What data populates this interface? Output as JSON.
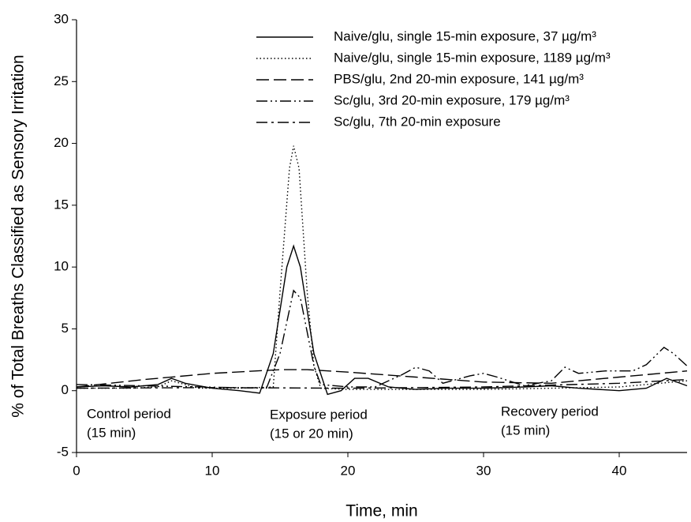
{
  "chart_data": {
    "type": "line",
    "x_label": "Time, min",
    "y_label": "% of Total Breaths Classified as Sensory Irritation",
    "xlim": [
      0,
      45
    ],
    "xticks": [
      0,
      10,
      20,
      30,
      40
    ],
    "ylim": [
      -5,
      30
    ],
    "yticks": [
      -5,
      0,
      5,
      10,
      15,
      20,
      25,
      30
    ],
    "legend": "upper right",
    "series": [
      {
        "name": "Naive/glu, single 15-min exposure, 37 µg/m³",
        "color": "#000000",
        "dash": "solid",
        "x": [
          0,
          2,
          4,
          6,
          7,
          8,
          10,
          12,
          13.5,
          14.5,
          15.5,
          16,
          16.5,
          17.5,
          18.5,
          19.5,
          20.5,
          21.5,
          23,
          25,
          27,
          30,
          33,
          35,
          37,
          40,
          42,
          43.5,
          45
        ],
        "values": [
          0.3,
          0.4,
          0.3,
          0.5,
          1.0,
          0.6,
          0.2,
          0.0,
          -0.2,
          3,
          10,
          11.7,
          10,
          3,
          -0.3,
          0,
          1.0,
          1.0,
          0.3,
          0.1,
          0.2,
          0.2,
          0.3,
          0.4,
          0.2,
          0.0,
          0.2,
          1.0,
          0.4
        ]
      },
      {
        "name": "Naive/glu, single 15-min exposure, 1189 µg/m³",
        "color": "#000000",
        "dash": "dotted",
        "x": [
          0,
          4,
          6,
          7,
          9,
          12,
          14.5,
          15,
          15.7,
          16,
          16.4,
          17,
          17.5,
          18,
          20,
          25,
          30,
          35,
          40,
          43,
          45
        ],
        "values": [
          0.2,
          0.2,
          0.3,
          0.8,
          0.2,
          0.2,
          0.3,
          8,
          18,
          19.8,
          18,
          8,
          2,
          0.2,
          0.1,
          0.1,
          0.1,
          0.2,
          0.3,
          0.6,
          0.8
        ]
      },
      {
        "name": "PBS/glu, 2nd 20-min exposure, 141 µg/m³",
        "color": "#000000",
        "dash": "dashed",
        "x": [
          0,
          5,
          10,
          15,
          17,
          20,
          25,
          30,
          35,
          40,
          45
        ],
        "values": [
          0.3,
          0.9,
          1.4,
          1.7,
          1.7,
          1.5,
          1.1,
          0.7,
          0.6,
          1.1,
          1.6
        ]
      },
      {
        "name": "Sc/glu, 3rd 20-min exposure, 179 µg/m³",
        "color": "#000000",
        "dash": "dash-dot-dot",
        "x": [
          0,
          14,
          15,
          16,
          16.5,
          17.5,
          18,
          20,
          22,
          24,
          25,
          26,
          27,
          29,
          30,
          31,
          33,
          35,
          36,
          37,
          39,
          41,
          42,
          43.3,
          44,
          45
        ],
        "values": [
          0.5,
          0.2,
          3,
          8.1,
          7.5,
          2,
          0.5,
          0.3,
          0.3,
          1.3,
          1.9,
          1.6,
          0.6,
          1.2,
          1.4,
          1.1,
          0.4,
          0.8,
          1.9,
          1.4,
          1.6,
          1.6,
          2.1,
          3.5,
          3.0,
          2.0
        ]
      },
      {
        "name": "Sc/glu, 7th 20-min exposure",
        "color": "#000000",
        "dash": "dash-dot",
        "x": [
          0,
          10,
          20,
          30,
          40,
          45
        ],
        "values": [
          0.2,
          0.25,
          0.2,
          0.3,
          0.6,
          0.9
        ]
      }
    ],
    "annotations": [
      [
        "Control period",
        "(15 min)"
      ],
      [
        "Exposure period",
        "(15 or 20 min)"
      ],
      [
        "Recovery period",
        "(15 min)"
      ]
    ]
  }
}
